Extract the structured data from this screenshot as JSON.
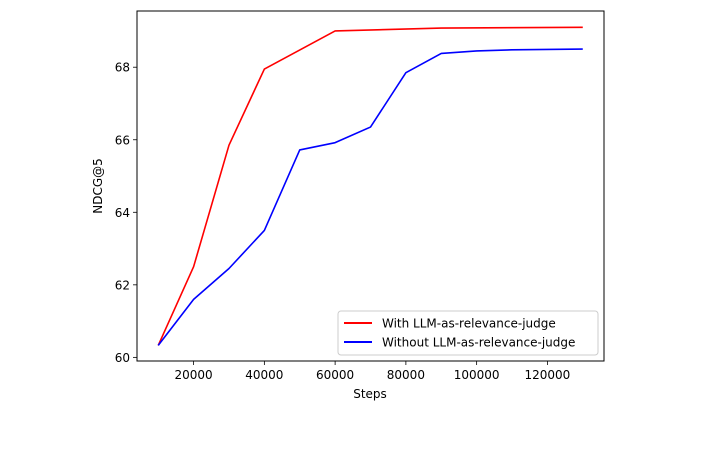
{
  "chart_data": {
    "type": "line",
    "title": "",
    "xlabel": "Steps",
    "ylabel": "NDCG@5",
    "xlim": [
      4000,
      136000
    ],
    "ylim": [
      59.9,
      69.55
    ],
    "xticks": [
      20000,
      40000,
      60000,
      80000,
      100000,
      120000
    ],
    "xtick_labels": [
      "20000",
      "40000",
      "60000",
      "80000",
      "100000",
      "120000"
    ],
    "yticks": [
      60,
      62,
      64,
      66,
      68
    ],
    "ytick_labels": [
      "60",
      "62",
      "64",
      "66",
      "68"
    ],
    "grid": false,
    "legend_position": "lower right",
    "series": [
      {
        "name": "With LLM-as-relevance-judge",
        "color": "#ff0000",
        "x": [
          10000,
          20000,
          30000,
          40000,
          60000,
          90000,
          130000
        ],
        "values": [
          60.33,
          62.5,
          65.85,
          67.95,
          69.0,
          69.08,
          69.1
        ]
      },
      {
        "name": "Without LLM-as-relevance-judge",
        "color": "#0000ff",
        "x": [
          10000,
          20000,
          30000,
          40000,
          50000,
          60000,
          70000,
          80000,
          90000,
          100000,
          110000,
          130000
        ],
        "values": [
          60.33,
          61.6,
          62.45,
          63.5,
          65.72,
          65.92,
          66.35,
          67.85,
          68.38,
          68.45,
          68.48,
          68.5
        ]
      }
    ]
  }
}
